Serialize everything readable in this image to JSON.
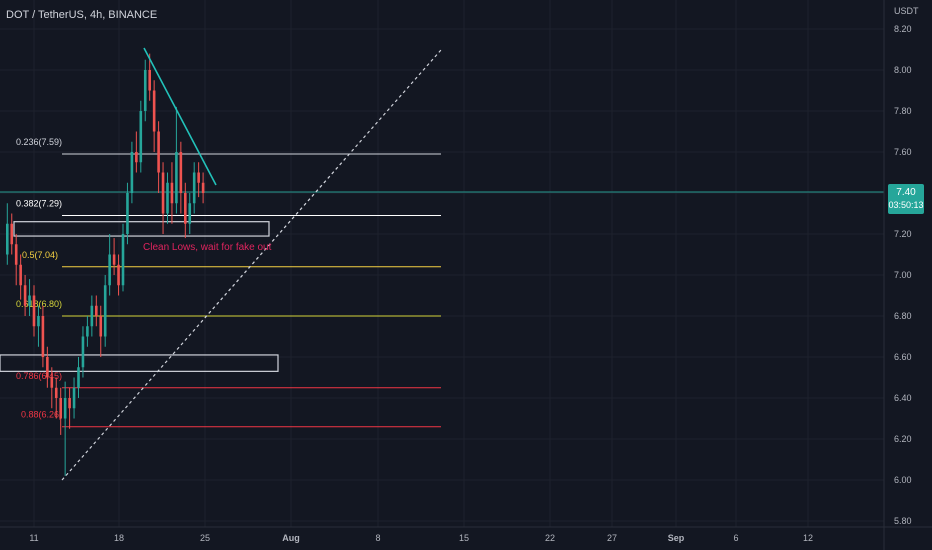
{
  "header": {
    "title": "DOT / TetherUS, 4h, BINANCE",
    "unit": "USDT"
  },
  "price_badge": {
    "price": "7.40",
    "countdown": "03:50:13"
  },
  "chart_data": {
    "type": "candlestick",
    "title": "DOT / TetherUS, 4h, BINANCE",
    "ylabel": "USDT",
    "ylim": [
      5.8,
      8.25
    ],
    "y_ticks": [
      "8.20",
      "8.00",
      "7.80",
      "7.60",
      "7.40",
      "7.20",
      "7.00",
      "6.80",
      "6.60",
      "6.40",
      "6.20",
      "6.00",
      "5.80"
    ],
    "x_ticks": [
      "11",
      "18",
      "25",
      "Aug",
      "8",
      "15",
      "22",
      "27",
      "Sep",
      "6",
      "12"
    ],
    "last_price": 7.4,
    "fib_levels": [
      {
        "label": "0.236(7.59)",
        "value": 7.59,
        "color": "#d1d4dc"
      },
      {
        "label": "0.382(7.29)",
        "value": 7.29,
        "color": "#ffffff"
      },
      {
        "label": "0.5(7.04)",
        "value": 7.04,
        "color": "#f5d142"
      },
      {
        "label": "0.618(6.80)",
        "value": 6.8,
        "color": "#d6d63a"
      },
      {
        "label": "0.786(6.45)",
        "value": 6.45,
        "color": "#f23645"
      },
      {
        "label": "0.88(6.26)",
        "value": 6.26,
        "color": "#f23645"
      }
    ],
    "boxes": [
      {
        "from": "",
        "to": "",
        "top": 7.26,
        "bottom": 7.19
      },
      {
        "from": "",
        "to": "",
        "top": 6.61,
        "bottom": 6.53
      }
    ],
    "annotation": "Clean Lows, wait for fake out",
    "candles": [
      [
        7.1,
        7.25,
        7.35,
        7.05
      ],
      [
        7.25,
        7.15,
        7.3,
        7.1
      ],
      [
        7.15,
        7.05,
        7.2,
        6.95
      ],
      [
        7.05,
        6.95,
        7.1,
        6.88
      ],
      [
        6.95,
        6.85,
        7.0,
        6.8
      ],
      [
        6.85,
        6.9,
        6.98,
        6.8
      ],
      [
        6.9,
        6.75,
        6.95,
        6.7
      ],
      [
        6.75,
        6.8,
        6.85,
        6.65
      ],
      [
        6.8,
        6.6,
        6.85,
        6.55
      ],
      [
        6.6,
        6.5,
        6.65,
        6.45
      ],
      [
        6.5,
        6.45,
        6.55,
        6.35
      ],
      [
        6.45,
        6.4,
        6.5,
        6.3
      ],
      [
        6.4,
        6.3,
        6.45,
        6.22
      ],
      [
        6.3,
        6.4,
        6.48,
        6.02
      ],
      [
        6.4,
        6.35,
        6.45,
        6.25
      ],
      [
        6.35,
        6.45,
        6.5,
        6.3
      ],
      [
        6.45,
        6.55,
        6.6,
        6.4
      ],
      [
        6.55,
        6.7,
        6.75,
        6.5
      ],
      [
        6.7,
        6.75,
        6.8,
        6.65
      ],
      [
        6.75,
        6.85,
        6.9,
        6.7
      ],
      [
        6.85,
        6.8,
        6.9,
        6.75
      ],
      [
        6.8,
        6.7,
        6.85,
        6.6
      ],
      [
        6.7,
        6.95,
        7.0,
        6.65
      ],
      [
        6.95,
        7.1,
        7.2,
        6.9
      ],
      [
        7.1,
        7.05,
        7.18,
        7.0
      ],
      [
        7.05,
        6.95,
        7.1,
        6.9
      ],
      [
        6.95,
        7.2,
        7.25,
        6.92
      ],
      [
        7.2,
        7.4,
        7.45,
        7.15
      ],
      [
        7.4,
        7.6,
        7.65,
        7.35
      ],
      [
        7.6,
        7.55,
        7.7,
        7.5
      ],
      [
        7.55,
        7.8,
        7.85,
        7.5
      ],
      [
        7.8,
        8.0,
        8.05,
        7.75
      ],
      [
        8.0,
        7.9,
        8.08,
        7.85
      ],
      [
        7.9,
        7.7,
        7.95,
        7.6
      ],
      [
        7.7,
        7.5,
        7.75,
        7.4
      ],
      [
        7.5,
        7.3,
        7.55,
        7.2
      ],
      [
        7.3,
        7.45,
        7.5,
        7.25
      ],
      [
        7.45,
        7.35,
        7.55,
        7.25
      ],
      [
        7.35,
        7.6,
        7.82,
        7.3
      ],
      [
        7.6,
        7.4,
        7.65,
        7.3
      ],
      [
        7.4,
        7.25,
        7.45,
        7.18
      ],
      [
        7.25,
        7.35,
        7.4,
        7.2
      ],
      [
        7.35,
        7.5,
        7.55,
        7.3
      ],
      [
        7.5,
        7.45,
        7.55,
        7.38
      ],
      [
        7.45,
        7.4,
        7.5,
        7.35
      ]
    ]
  }
}
